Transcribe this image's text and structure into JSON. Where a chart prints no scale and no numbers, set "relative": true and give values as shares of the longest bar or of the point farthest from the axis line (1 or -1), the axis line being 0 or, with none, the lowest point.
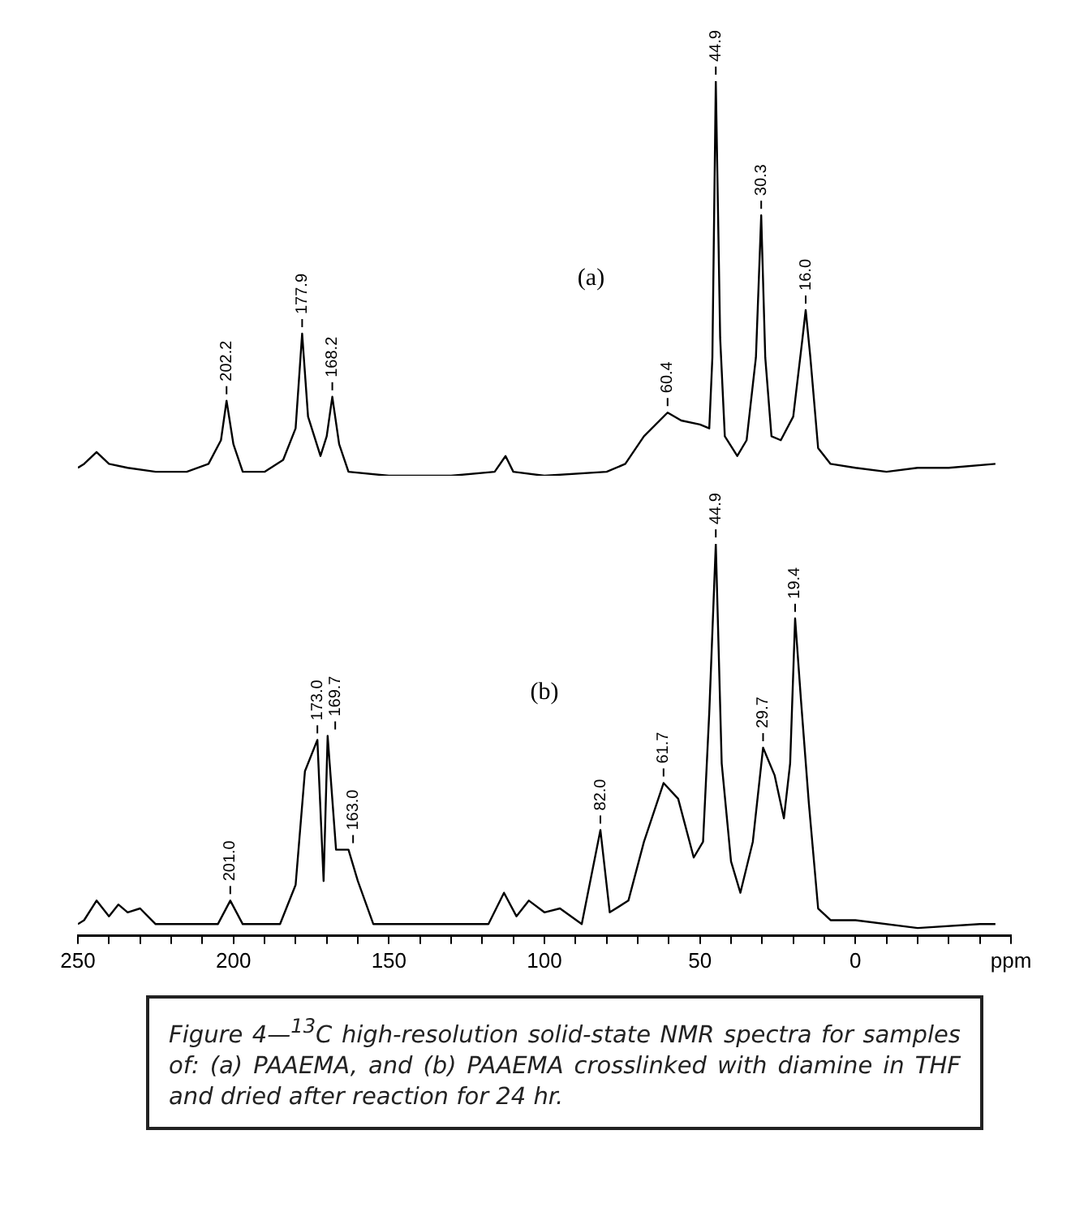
{
  "chart_data": [
    {
      "type": "line",
      "relative": true,
      "xlim": [
        250,
        -50
      ],
      "tick_labels": false,
      "grid": false,
      "legend": false,
      "marker": "none",
      "line_style": "solid",
      "series": [
        {
          "name": "(a)",
          "color": "#000000",
          "x": [
            250,
            248,
            244,
            240,
            234,
            225,
            215,
            208,
            204,
            202.2,
            200,
            197,
            190,
            184,
            180,
            177.9,
            176,
            172,
            170,
            168.2,
            166,
            163,
            150,
            130,
            116,
            112.5,
            110,
            100,
            80,
            74,
            68,
            60.4,
            56,
            50,
            47,
            46,
            44.9,
            43.5,
            42,
            38,
            35,
            32,
            30.3,
            29,
            27,
            24,
            20,
            17,
            16,
            14.5,
            12,
            8,
            0,
            -10,
            -20,
            -30,
            -45
          ],
          "values": [
            0.02,
            0.03,
            0.06,
            0.03,
            0.02,
            0.01,
            0.01,
            0.03,
            0.09,
            0.19,
            0.08,
            0.01,
            0.01,
            0.04,
            0.12,
            0.36,
            0.15,
            0.05,
            0.1,
            0.2,
            0.08,
            0.01,
            0,
            0,
            0.01,
            0.05,
            0.01,
            0,
            0.01,
            0.03,
            0.1,
            0.16,
            0.14,
            0.13,
            0.12,
            0.3,
            1.0,
            0.35,
            0.1,
            0.05,
            0.09,
            0.3,
            0.66,
            0.3,
            0.1,
            0.09,
            0.15,
            0.35,
            0.42,
            0.3,
            0.07,
            0.03,
            0.02,
            0.01,
            0.02,
            0.02,
            0.03
          ]
        }
      ],
      "annotations": [
        {
          "text": "202.2",
          "x": 202.2,
          "y": 0.19
        },
        {
          "text": "177.9",
          "x": 177.9,
          "y": 0.36
        },
        {
          "text": "168.2",
          "x": 168.2,
          "y": 0.2
        },
        {
          "text": "60.4",
          "x": 60.4,
          "y": 0.16
        },
        {
          "text": "44.9",
          "x": 44.9,
          "y": 1.0
        },
        {
          "text": "30.3",
          "x": 30.3,
          "y": 0.66
        },
        {
          "text": "16.0",
          "x": 16,
          "y": 0.42
        }
      ]
    },
    {
      "type": "line",
      "relative": true,
      "xlim": [
        250,
        -50
      ],
      "grid": false,
      "legend": false,
      "marker": "none",
      "line_style": "solid",
      "xticks": [
        250,
        {
          "value": 240,
          "label": null
        },
        {
          "value": 230,
          "label": null
        },
        {
          "value": 220,
          "label": null
        },
        {
          "value": 210,
          "label": null
        },
        200,
        {
          "value": 190,
          "label": null
        },
        {
          "value": 180,
          "label": null
        },
        {
          "value": 170,
          "label": null
        },
        {
          "value": 160,
          "label": null
        },
        150,
        {
          "value": 140,
          "label": null
        },
        {
          "value": 130,
          "label": null
        },
        {
          "value": 120,
          "label": null
        },
        {
          "value": 110,
          "label": null
        },
        100,
        {
          "value": 90,
          "label": null
        },
        {
          "value": 80,
          "label": null
        },
        {
          "value": 70,
          "label": null
        },
        {
          "value": 60,
          "label": null
        },
        50,
        {
          "value": 40,
          "label": null
        },
        {
          "value": 30,
          "label": null
        },
        {
          "value": 20,
          "label": null
        },
        {
          "value": 10,
          "label": null
        },
        0,
        {
          "value": -10,
          "label": null
        },
        {
          "value": -20,
          "label": null
        },
        {
          "value": -30,
          "label": null
        },
        {
          "value": -40,
          "label": null
        },
        {
          "value": -50,
          "label": "ppm"
        }
      ],
      "series": [
        {
          "name": "(b)",
          "color": "#000000",
          "x": [
            250,
            248,
            244,
            240,
            237,
            234,
            230,
            225,
            215,
            205,
            201,
            197,
            185,
            180,
            177,
            173,
            171,
            169.7,
            167,
            163,
            160,
            155,
            130,
            118,
            113,
            109,
            105,
            100,
            95,
            88,
            82,
            79,
            73,
            68,
            61.7,
            57,
            52,
            49,
            47,
            44.9,
            43,
            40,
            37,
            33,
            29.7,
            26,
            23,
            21,
            19.4,
            17.5,
            15,
            12,
            8,
            0,
            -20,
            -40,
            -45
          ],
          "values": [
            0.03,
            0.04,
            0.09,
            0.05,
            0.08,
            0.06,
            0.07,
            0.03,
            0.03,
            0.03,
            0.09,
            0.03,
            0.03,
            0.13,
            0.42,
            0.5,
            0.14,
            0.51,
            0.22,
            0.22,
            0.14,
            0.03,
            0.03,
            0.03,
            0.11,
            0.05,
            0.09,
            0.06,
            0.07,
            0.03,
            0.27,
            0.06,
            0.09,
            0.24,
            0.39,
            0.35,
            0.2,
            0.24,
            0.57,
            1.0,
            0.44,
            0.19,
            0.11,
            0.24,
            0.48,
            0.41,
            0.3,
            0.44,
            0.81,
            0.6,
            0.34,
            0.07,
            0.04,
            0.04,
            0.02,
            0.03,
            0.03
          ]
        }
      ],
      "annotations": [
        {
          "text": "201.0",
          "x": 201,
          "y": 0.09
        },
        {
          "text": "173.0",
          "x": 173,
          "y": 0.5
        },
        {
          "text": "169.7",
          "x": 169.7,
          "y": 0.51
        },
        {
          "text": "163.0",
          "x": 163,
          "y": 0.22
        },
        {
          "text": "82.0",
          "x": 82,
          "y": 0.27
        },
        {
          "text": "61.7",
          "x": 61.7,
          "y": 0.39
        },
        {
          "text": "44.9",
          "x": 44.9,
          "y": 1.0
        },
        {
          "text": "29.7",
          "x": 29.7,
          "y": 0.48
        },
        {
          "text": "19.4",
          "x": 19.4,
          "y": 0.81
        },
        "Figure 4—$^{13}$C high-resolution solid-state NMR spectra for samples of: (a) PAAEMA, and (b) PAAEMA crosslinked with diamine in THF and dried after reaction for 24 hr."
      ]
    }
  ]
}
